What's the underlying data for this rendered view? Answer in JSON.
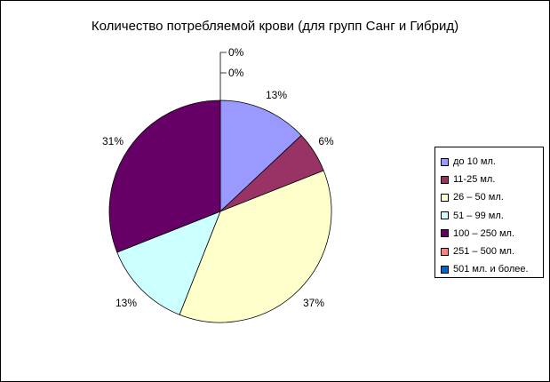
{
  "chart_data": {
    "type": "pie",
    "title": "Количество потребляемой крови (для групп Санг и Гибрид)",
    "categories": [
      "до 10 мл.",
      "11-25 мл.",
      "26 – 50 мл.",
      "51 – 99 мл.",
      "100 – 250 мл.",
      "251 – 500 мл.",
      "501 мл. и более."
    ],
    "values": [
      13,
      6,
      37,
      13,
      31,
      0,
      0
    ],
    "data_labels": [
      "13%",
      "6%",
      "37%",
      "13%",
      "31%",
      "0%",
      "0%"
    ],
    "colors": [
      "#9999ff",
      "#993366",
      "#ffffcc",
      "#ccffff",
      "#660066",
      "#ff8080",
      "#0066cc"
    ],
    "legend_placement": "right"
  }
}
